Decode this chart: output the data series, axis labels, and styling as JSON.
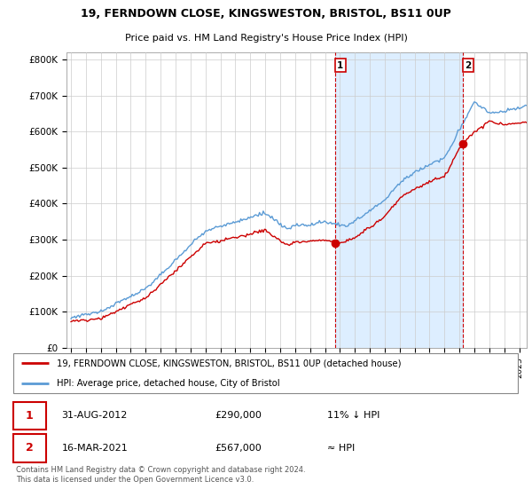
{
  "title1": "19, FERNDOWN CLOSE, KINGSWESTON, BRISTOL, BS11 0UP",
  "title2": "Price paid vs. HM Land Registry's House Price Index (HPI)",
  "ylabel_ticks": [
    "£0",
    "£100K",
    "£200K",
    "£300K",
    "£400K",
    "£500K",
    "£600K",
    "£700K",
    "£800K"
  ],
  "ytick_values": [
    0,
    100000,
    200000,
    300000,
    400000,
    500000,
    600000,
    700000,
    800000
  ],
  "ylim": [
    0,
    820000
  ],
  "xlim_start": 1994.7,
  "xlim_end": 2025.5,
  "hpi_color": "#5b9bd5",
  "hpi_fill_color": "#ddeeff",
  "price_color": "#cc0000",
  "dashed_color": "#cc0000",
  "point1_year": 2012.667,
  "point1_price": 290000,
  "point2_year": 2021.208,
  "point2_price": 567000,
  "legend_label1": "19, FERNDOWN CLOSE, KINGSWESTON, BRISTOL, BS11 0UP (detached house)",
  "legend_label2": "HPI: Average price, detached house, City of Bristol",
  "table_row1": [
    "1",
    "31-AUG-2012",
    "£290,000",
    "11% ↓ HPI"
  ],
  "table_row2": [
    "2",
    "16-MAR-2021",
    "£567,000",
    "≈ HPI"
  ],
  "footnote": "Contains HM Land Registry data © Crown copyright and database right 2024.\nThis data is licensed under the Open Government Licence v3.0.",
  "background_color": "#ffffff",
  "plot_bg_color": "#ffffff",
  "grid_color": "#cccccc"
}
